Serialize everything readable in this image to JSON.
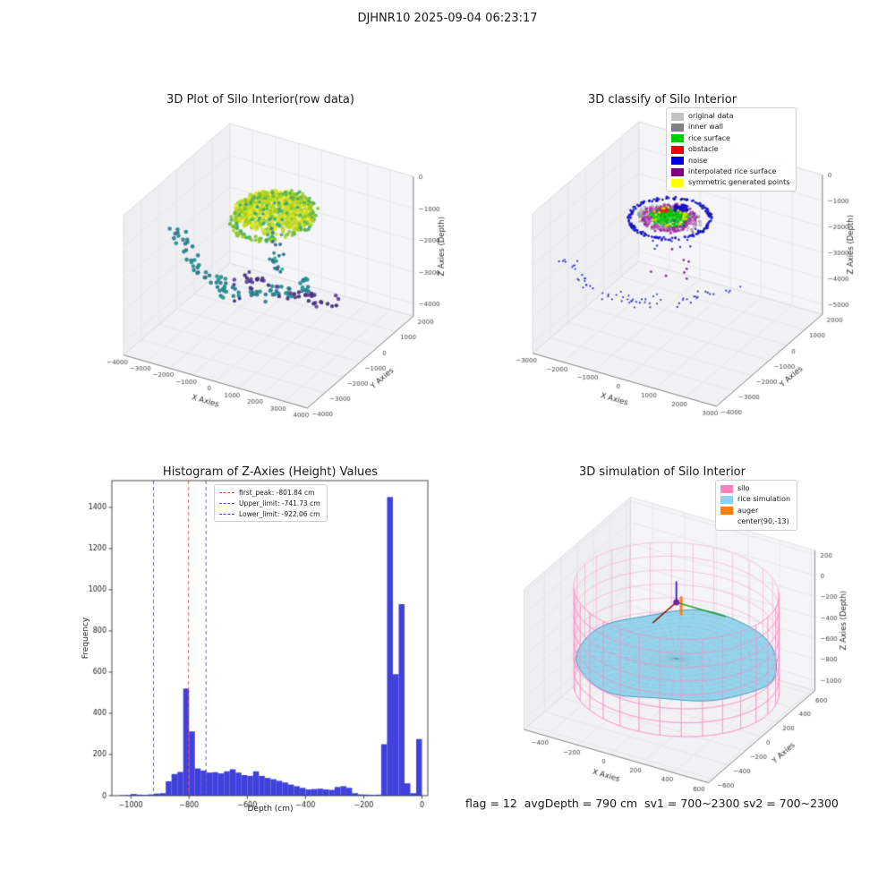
{
  "figure": {
    "title": "DJHNR10 2025-09-04 06:23:17",
    "footer": "flag = 12  avgDepth = 790 cm  sv1 = 700~2300 sv2 = 700~2300"
  },
  "chart_data": [
    {
      "id": "raw3d",
      "type": "scatter3d",
      "title": "3D Plot of Silo Interior(row data)",
      "xlabel": "X Axies",
      "ylabel": "Y Axies",
      "zlabel": "Z Axies (Depth)",
      "xlim": [
        -4000,
        4000
      ],
      "ylim": [
        -4000,
        2000
      ],
      "zlim": [
        -4400,
        0
      ],
      "xticks": [
        -4000,
        -3000,
        -2000,
        -1000,
        0,
        1000,
        2000,
        3000,
        4000
      ],
      "yticks": [
        -4000,
        -3000,
        -2000,
        -1000,
        0,
        1000,
        2000
      ],
      "zticks": [
        0,
        -1000,
        -2000,
        -3000,
        -4000
      ],
      "clusters": [
        {
          "name": "rice-surface-blob",
          "type": "disk",
          "center": [
            0,
            -700,
            -680
          ],
          "rx": 1500,
          "ry": 1080,
          "dome": 260,
          "zJitter": 110,
          "count": 900,
          "size": 2.0,
          "colors": [
            "#dde324",
            "#cfe021",
            "#c3db24",
            "#b0d428",
            "#e9e73a",
            "#97cb2f"
          ]
        },
        {
          "name": "rice-surface-rim",
          "type": "ring",
          "center": [
            0,
            -700
          ],
          "radius": 1380,
          "rJitter": 150,
          "z": -800,
          "zJitter": 80,
          "a0": 0,
          "a1": 360,
          "count": 160,
          "size": 2.0,
          "colors": [
            "#86c636",
            "#5fb84a",
            "#45ad5e",
            "#a9d125"
          ]
        },
        {
          "name": "blob-teal-speckle",
          "type": "disk",
          "center": [
            0,
            -700,
            -700
          ],
          "rx": 1200,
          "ry": 860,
          "zJitter": 80,
          "count": 30,
          "size": 1.8,
          "colors": [
            "#2f9e8f",
            "#35b779"
          ]
        },
        {
          "name": "wall-scan-teal-arc",
          "type": "bezier",
          "A": [
            -4000,
            -900,
            -1900
          ],
          "B": [
            -1265,
            -2690,
            -3500
          ],
          "C": [
            1890,
            -800,
            -2400
          ],
          "jitter": [
            260,
            260,
            150
          ],
          "count": 88,
          "size": 2.3,
          "colors": [
            "#26828e",
            "#21918c",
            "#2a788e"
          ]
        },
        {
          "name": "drip-column",
          "type": "column",
          "center": [
            50,
            -680
          ],
          "radius": 280,
          "z0": -950,
          "z1": -2500,
          "count": 24,
          "size": 2.0,
          "colors": [
            "#26828e",
            "#2fb47c",
            "#31688e"
          ]
        },
        {
          "name": "wall-scan-purple-arc",
          "type": "bezier",
          "A": [
            -1600,
            -840,
            -3000
          ],
          "B": [
            1020,
            -225,
            -3350
          ],
          "C": [
            2560,
            -510,
            -3100
          ],
          "jitter": [
            240,
            240,
            170
          ],
          "count": 40,
          "size": 2.2,
          "colors": [
            "#46327e",
            "#5b3e99",
            "#3f2d73"
          ]
        },
        {
          "name": "purple-sparse",
          "type": "column",
          "center": [
            -600,
            -1600
          ],
          "radius": 700,
          "z0": -2200,
          "z1": -2900,
          "count": 7,
          "size": 2.0,
          "colors": [
            "#46327e"
          ]
        }
      ]
    },
    {
      "id": "classify3d",
      "type": "scatter3d",
      "title": "3D classify of Silo Interior",
      "xlabel": "X Axies",
      "ylabel": "Y Axies",
      "zlabel": "Z Axies (Depth)",
      "xlim": [
        -3000,
        3000
      ],
      "ylim": [
        -4000,
        2000
      ],
      "zlim": [
        -5400,
        0
      ],
      "xticks": [
        -3000,
        -2000,
        -1000,
        0,
        1000,
        2000,
        3000
      ],
      "yticks": [
        -4000,
        -3000,
        -2000,
        -1000,
        0,
        1000,
        2000
      ],
      "zticks": [
        0,
        -1000,
        -2000,
        -3000,
        -4000,
        -5000
      ],
      "legend": [
        {
          "label": "original data",
          "color": "#c3c3c3"
        },
        {
          "label": "inner wall",
          "color": "#808080"
        },
        {
          "label": "rice surface",
          "color": "#00cc00"
        },
        {
          "label": "obstacle",
          "color": "#ee0000"
        },
        {
          "label": "noise",
          "color": "#0000dd"
        },
        {
          "label": "interpolated rice surface",
          "color": "#800080"
        },
        {
          "label": "symmetric generated points",
          "color": "#ffff00"
        }
      ],
      "clusters": [
        {
          "name": "original-data-gray",
          "type": "disk",
          "center": [
            -400,
            -750,
            -1250
          ],
          "rx": 950,
          "ry": 680,
          "dome": 120,
          "zJitter": 90,
          "count": 260,
          "size": 1.6,
          "colors": [
            "#c4c4c4",
            "#ababab",
            "#939393"
          ]
        },
        {
          "name": "rice-surface-green",
          "type": "disk",
          "center": [
            -400,
            -750,
            -1180
          ],
          "rx": 620,
          "ry": 450,
          "dome": 80,
          "zJitter": 60,
          "count": 320,
          "size": 1.6,
          "colors": [
            "#15c515",
            "#0eb30e",
            "#3cd63c"
          ]
        },
        {
          "name": "interpolated-magenta-ring",
          "type": "ring",
          "center": [
            -400,
            -750
          ],
          "radius": 660,
          "rJitter": 130,
          "z": -1200,
          "zJitter": 60,
          "a0": 0,
          "a1": 360,
          "count": 150,
          "size": 1.6,
          "colors": [
            "#b13ab1",
            "#972d97",
            "#c75ec7"
          ]
        },
        {
          "name": "noise-ring-outline",
          "type": "ring",
          "center": [
            -400,
            -750
          ],
          "radius": 1150,
          "rJitter": 50,
          "z": -1220,
          "zJitter": 45,
          "a0": 0,
          "a1": 360,
          "count": 180,
          "size": 1.4,
          "colors": [
            "#2020cc",
            "#1414b2"
          ]
        },
        {
          "name": "noise-top-cluster",
          "type": "disk",
          "center": [
            -250,
            -380,
            -1000
          ],
          "rx": 210,
          "ry": 150,
          "zJitter": 60,
          "count": 55,
          "size": 1.8,
          "colors": [
            "#1a1acc",
            "#1010b0"
          ]
        },
        {
          "name": "obstacle-red",
          "type": "disk",
          "center": [
            -700,
            -500,
            -1150
          ],
          "rx": 160,
          "ry": 110,
          "zJitter": 50,
          "count": 10,
          "size": 1.7,
          "colors": [
            "#dd2020"
          ]
        },
        {
          "name": "symmetric-yellow",
          "type": "ring",
          "center": [
            -400,
            -750
          ],
          "radius": 480,
          "rJitter": 100,
          "z": -1160,
          "zJitter": 50,
          "a0": 0,
          "a1": 360,
          "count": 22,
          "size": 1.5,
          "colors": [
            "#dede00"
          ]
        },
        {
          "name": "noise-wall-arc",
          "type": "bezier",
          "A": [
            -2950,
            -2200,
            -2800
          ],
          "B": [
            -975,
            -3150,
            -4250
          ],
          "C": [
            1700,
            -700,
            -3100
          ],
          "jitter": [
            240,
            240,
            150
          ],
          "count": 66,
          "size": 1.1,
          "colors": [
            "#3030cc",
            "#2424b5"
          ]
        },
        {
          "name": "noise-below",
          "type": "column",
          "center": [
            -300,
            -700
          ],
          "radius": 600,
          "z0": -1600,
          "z1": -2400,
          "count": 10,
          "size": 1.2,
          "colors": [
            "#3030cc"
          ]
        },
        {
          "name": "purple-below",
          "type": "column",
          "center": [
            100,
            -1500
          ],
          "radius": 650,
          "z0": -2000,
          "z1": -2700,
          "count": 8,
          "size": 1.4,
          "colors": [
            "#7a1f8e"
          ]
        }
      ]
    },
    {
      "id": "histogram",
      "type": "bar",
      "title": "Histogram of Z-Axies (Height) Values",
      "xlabel": "Depth (cm)",
      "ylabel": "Frequency",
      "bin_start": -1040,
      "bin_width": 20,
      "values": [
        2,
        3,
        8,
        5,
        4,
        6,
        10,
        12,
        70,
        105,
        115,
        520,
        312,
        132,
        122,
        112,
        114,
        108,
        118,
        128,
        112,
        100,
        96,
        118,
        96,
        86,
        80,
        72,
        64,
        54,
        46,
        38,
        30,
        32,
        34,
        30,
        28,
        42,
        46,
        38,
        12,
        6,
        5,
        4,
        5,
        250,
        1450,
        590,
        930,
        60,
        12,
        275
      ],
      "xticks": [
        -1000,
        -800,
        -600,
        -400,
        -200,
        0
      ],
      "yticks": [
        0,
        200,
        400,
        600,
        800,
        1000,
        1200,
        1400
      ],
      "xlim": [
        -1065,
        20
      ],
      "ylim": [
        0,
        1530
      ],
      "bar_color": "#4040dd",
      "lines": [
        {
          "label": "first_peak: -801.84 cm",
          "x": -801.84,
          "color": "#e04848"
        },
        {
          "label": "Upper_limit: -741.73 cm",
          "x": -741.73,
          "color": "#4848e0"
        },
        {
          "label": "Lower_limit: -922.06 cm",
          "x": -922.06,
          "color": "#4848e0"
        }
      ]
    },
    {
      "id": "sim3d",
      "type": "sim3d",
      "title": "3D simulation of Silo Interior",
      "xlabel": "X Axies",
      "ylabel": "Y Axies",
      "zlabel": "Z Axies (Depth)",
      "xlim": [
        -540,
        620
      ],
      "ylim": [
        -650,
        650
      ],
      "zlim": [
        -1100,
        240
      ],
      "xticks": [
        -400,
        -200,
        0,
        200,
        400,
        600
      ],
      "yticks": [
        -600,
        -400,
        -200,
        0,
        200,
        400,
        600
      ],
      "zticks": [
        200,
        0,
        -200,
        -400,
        -600,
        -800,
        -1000
      ],
      "legend": [
        {
          "label": "silo",
          "color": "#ff7fbf"
        },
        {
          "label": "rice simulation",
          "color": "#8fd2ec"
        },
        {
          "label": "auger",
          "color": "#ff7f0e"
        },
        {
          "label": "center(90,-13)",
          "color": null
        }
      ],
      "silo": {
        "center_x": 90,
        "center_y": -13,
        "radius": 575,
        "z_top": 70,
        "z_bottom": -860,
        "color": "#ff8ac4",
        "verticals": 30,
        "rings": 8
      },
      "rice": {
        "radius": 560,
        "base_z": -540,
        "amplitude": 110,
        "fill": "#90d3ec",
        "mesh": "rgba(60,130,160,0.45)",
        "edge": "#4d9cc0"
      },
      "auger": {
        "x": 90,
        "y": -13,
        "z": -40,
        "up_color": "#2222cc",
        "x_color": "#2ca02c",
        "y_color": "#8b0000",
        "marker_color": "#7a1fa2",
        "body_color": "#ff7f0e"
      }
    }
  ]
}
